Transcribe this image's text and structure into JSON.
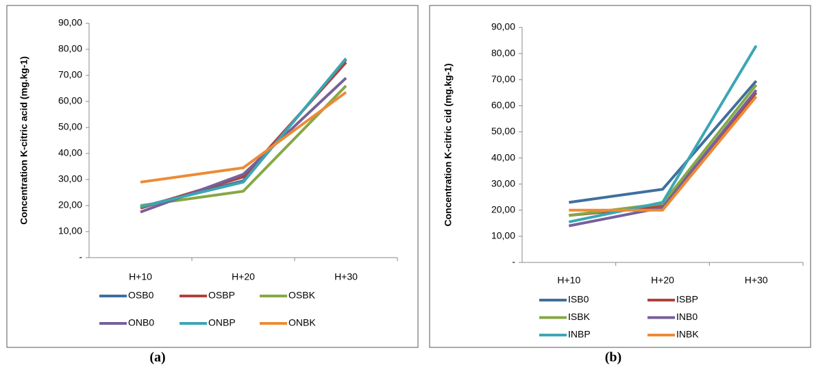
{
  "chart_data": [
    {
      "type": "line",
      "label": "(a)",
      "y_label": "Concentration K-citric acid (mg.kg-1)",
      "categories": [
        "H+10",
        "H+20",
        "H+30"
      ],
      "ylim": [
        0,
        90
      ],
      "yticks": [
        {
          "value": 0,
          "label": "-"
        },
        {
          "value": 10,
          "label": "10,00"
        },
        {
          "value": 20,
          "label": "20,00"
        },
        {
          "value": 30,
          "label": "30,00"
        },
        {
          "value": 40,
          "label": "40,00"
        },
        {
          "value": 50,
          "label": "50,00"
        },
        {
          "value": 60,
          "label": "60,00"
        },
        {
          "value": 70,
          "label": "70,00"
        },
        {
          "value": 80,
          "label": "80,00"
        },
        {
          "value": 90,
          "label": "90,00"
        }
      ],
      "series": [
        {
          "name": "OSB0",
          "color": "#3f6f9e",
          "values": [
            19.5,
            29.5,
            76
          ]
        },
        {
          "name": "OSBP",
          "color": "#b0413e",
          "values": [
            19,
            31,
            75
          ]
        },
        {
          "name": "OSBK",
          "color": "#86a845",
          "values": [
            20,
            25.5,
            66
          ]
        },
        {
          "name": "ONB0",
          "color": "#77609a",
          "values": [
            17.5,
            32,
            69
          ]
        },
        {
          "name": "ONBP",
          "color": "#3ba6b3",
          "values": [
            19.5,
            29,
            76.5
          ]
        },
        {
          "name": "ONBK",
          "color": "#ee8a35",
          "values": [
            29,
            34.5,
            63.5
          ]
        }
      ]
    },
    {
      "type": "line",
      "label": "(b)",
      "y_label": "Concentration K-citric cid (mg.kg-1)",
      "categories": [
        "H+10",
        "H+20",
        "H+30"
      ],
      "ylim": [
        0,
        90
      ],
      "yticks": [
        {
          "value": 0,
          "label": "-"
        },
        {
          "value": 10,
          "label": "10,00"
        },
        {
          "value": 20,
          "label": "20,00"
        },
        {
          "value": 30,
          "label": "30,00"
        },
        {
          "value": 40,
          "label": "40,00"
        },
        {
          "value": 50,
          "label": "50,00"
        },
        {
          "value": 60,
          "label": "60,00"
        },
        {
          "value": 70,
          "label": "70,00"
        },
        {
          "value": 80,
          "label": "80,00"
        },
        {
          "value": 90,
          "label": "90,00"
        }
      ],
      "series": [
        {
          "name": "ISB0",
          "color": "#3f6f9e",
          "values": [
            23,
            28,
            69.5
          ]
        },
        {
          "name": "ISBP",
          "color": "#b0413e",
          "values": [
            18,
            21.5,
            65
          ]
        },
        {
          "name": "ISBK",
          "color": "#86a845",
          "values": [
            18,
            22.5,
            68
          ]
        },
        {
          "name": "INB0",
          "color": "#77609a",
          "values": [
            14,
            21,
            66
          ]
        },
        {
          "name": "INBP",
          "color": "#3ba6b3",
          "values": [
            15.5,
            23,
            83
          ]
        },
        {
          "name": "INBK",
          "color": "#ee8a35",
          "values": [
            20,
            20,
            63.5
          ]
        }
      ]
    }
  ]
}
